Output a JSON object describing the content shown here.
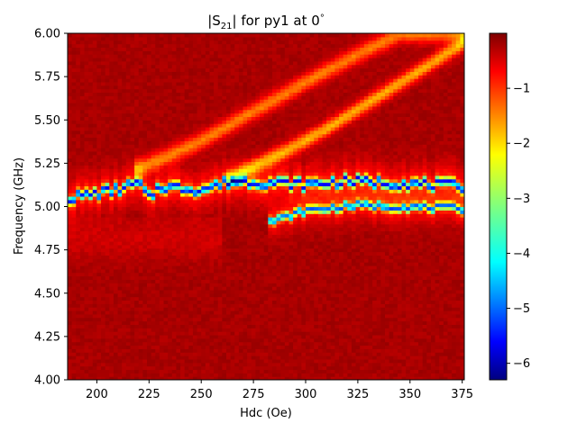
{
  "chart_data": {
    "type": "heatmap",
    "title_prefix": "|S",
    "title_sub": "21",
    "title_suffix": "| for py1 at 0",
    "title_degree": "°",
    "xlabel": "Hdc (Oe)",
    "ylabel": "Frequency (GHz)",
    "xlim": [
      186,
      376
    ],
    "ylim": [
      4.0,
      6.0
    ],
    "x_ticks": [
      200,
      225,
      250,
      275,
      300,
      325,
      350,
      375
    ],
    "y_ticks": [
      4.0,
      4.25,
      4.5,
      4.75,
      5.0,
      5.25,
      5.5,
      5.75,
      6.0
    ],
    "x_tick_labels": [
      "200",
      "225",
      "250",
      "275",
      "300",
      "325",
      "350",
      "375"
    ],
    "y_tick_labels": [
      "4.00",
      "4.25",
      "4.50",
      "4.75",
      "5.00",
      "5.25",
      "5.50",
      "5.75",
      "6.00"
    ],
    "colormap": "jet",
    "color_range": [
      -6.3,
      0
    ],
    "colorbar_ticks": [
      -1,
      -2,
      -3,
      -4,
      -5,
      -6
    ],
    "colorbar_tick_labels": [
      "−1",
      "−2",
      "−3",
      "−4",
      "−5",
      "−6"
    ],
    "features": {
      "primary_resonance": {
        "description": "deep absorption band",
        "points": [
          [
            186,
            5.05
          ],
          [
            200,
            5.08
          ],
          [
            210,
            5.1
          ],
          [
            220,
            5.14
          ],
          [
            225,
            5.05
          ],
          [
            230,
            5.12
          ],
          [
            250,
            5.1
          ],
          [
            265,
            5.15
          ],
          [
            285,
            5.14
          ],
          [
            300,
            5.13
          ],
          [
            320,
            5.15
          ],
          [
            340,
            5.14
          ],
          [
            376,
            5.12
          ]
        ],
        "depth": -4.5
      },
      "lower_mode": {
        "points": [
          [
            285,
            4.92
          ],
          [
            300,
            4.98
          ],
          [
            325,
            5.01
          ],
          [
            350,
            5.0
          ],
          [
            376,
            4.99
          ]
        ],
        "depth": -4.0
      },
      "upper_branch_1": {
        "points": [
          [
            220,
            5.22
          ],
          [
            250,
            5.38
          ],
          [
            275,
            5.55
          ],
          [
            300,
            5.72
          ],
          [
            325,
            5.88
          ],
          [
            345,
            6.0
          ]
        ],
        "depth": -1.3
      },
      "upper_branch_2": {
        "points": [
          [
            265,
            5.17
          ],
          [
            290,
            5.32
          ],
          [
            310,
            5.45
          ],
          [
            330,
            5.6
          ],
          [
            350,
            5.75
          ],
          [
            376,
            5.95
          ]
        ],
        "depth": -1.6
      }
    }
  }
}
